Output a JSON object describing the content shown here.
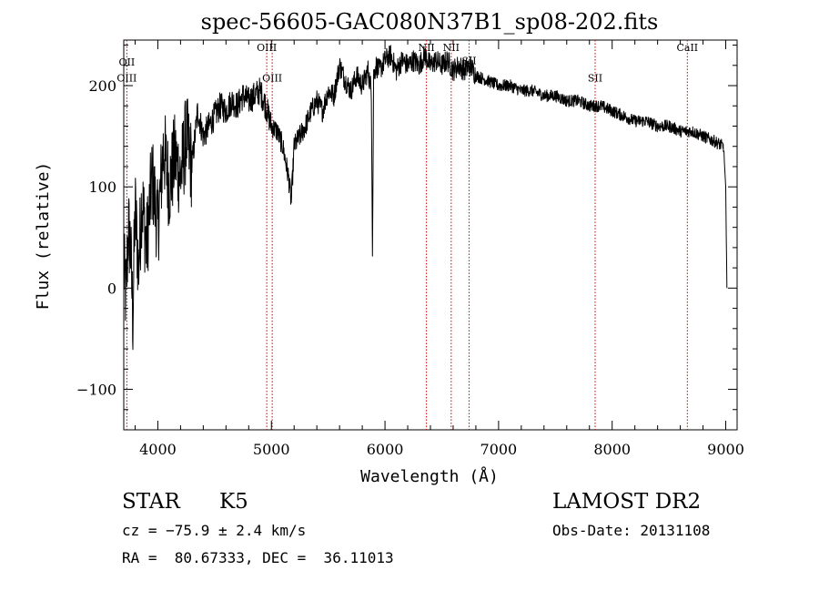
{
  "chart_data": {
    "type": "line",
    "title": "spec-56605-GAC080N37B1_sp08-202.fits",
    "xlabel": "Wavelength (Å)",
    "ylabel": "Flux (relative)",
    "xlim": [
      3700,
      9100
    ],
    "ylim": [
      -140,
      245
    ],
    "x_ticks": [
      4000,
      5000,
      6000,
      7000,
      8000,
      9000
    ],
    "y_ticks": [
      -100,
      0,
      100,
      200
    ],
    "grid": false,
    "series": [
      {
        "x": [
          3700,
          3720,
          3740,
          3760,
          3780,
          3800,
          3830,
          3860,
          3900,
          3950,
          4000,
          4050,
          4100,
          4150,
          4200,
          4250,
          4300,
          4350,
          4400,
          4450,
          4500,
          4550,
          4600,
          4650,
          4700,
          4750,
          4800,
          4850,
          4900,
          4950,
          5000,
          5050,
          5100,
          5150,
          5175,
          5200,
          5250,
          5300,
          5350,
          5400,
          5450,
          5500,
          5550,
          5600,
          5650,
          5700,
          5750,
          5800,
          5850,
          5880,
          5890,
          5900,
          5920,
          5950,
          6000,
          6050,
          6100,
          6150,
          6200,
          6250,
          6300,
          6350,
          6400,
          6450,
          6500,
          6550,
          6600,
          6650,
          6700,
          6750,
          6800,
          6900,
          7000,
          7100,
          7200,
          7300,
          7400,
          7500,
          7600,
          7700,
          7800,
          7900,
          8000,
          8100,
          8200,
          8300,
          8400,
          8500,
          8600,
          8700,
          8800,
          8900,
          8980,
          9000,
          9010
        ],
        "y": [
          20,
          -10,
          60,
          40,
          -30,
          80,
          20,
          90,
          40,
          110,
          60,
          140,
          100,
          130,
          110,
          150,
          120,
          175,
          150,
          160,
          170,
          180,
          175,
          185,
          180,
          190,
          185,
          190,
          195,
          180,
          160,
          155,
          140,
          110,
          85,
          140,
          150,
          160,
          175,
          185,
          175,
          195,
          190,
          220,
          205,
          195,
          210,
          200,
          215,
          195,
          40,
          210,
          220,
          215,
          225,
          230,
          215,
          225,
          220,
          225,
          220,
          230,
          220,
          225,
          220,
          225,
          215,
          220,
          215,
          220,
          210,
          205,
          200,
          200,
          195,
          195,
          190,
          190,
          185,
          185,
          180,
          180,
          175,
          170,
          165,
          165,
          160,
          160,
          155,
          155,
          150,
          145,
          140,
          100,
          0
        ]
      }
    ],
    "lines": [
      {
        "label": "OII",
        "x": 3727,
        "label_y": 220
      },
      {
        "label": "OIII",
        "x": 3727,
        "label_y": 204
      },
      {
        "label": "OIII",
        "x": 4959,
        "label_y": 234
      },
      {
        "label": "OIII",
        "x": 5007,
        "label_y": 204
      },
      {
        "label": "NII",
        "x": 6365,
        "label_y": 234
      },
      {
        "label": "NII",
        "x": 6583,
        "label_y": 234
      },
      {
        "label": "SII",
        "x": 6740,
        "label_y": 221
      },
      {
        "label": "SII",
        "x": 7850,
        "label_y": 204
      },
      {
        "label": "CaII",
        "x": 8662,
        "label_y": 234
      }
    ]
  },
  "info": {
    "object_class": "STAR",
    "subclass": "K5",
    "survey": "LAMOST DR2",
    "cz": "cz = −75.9 ± 2.4 km/s",
    "obs_date": "Obs-Date: 20131108",
    "coords": "RA =  80.67333, DEC =  36.11013"
  },
  "colors": {
    "spectrum": "#000000",
    "line_markers": "#cc0000",
    "axes": "#000000",
    "background": "#ffffff"
  }
}
